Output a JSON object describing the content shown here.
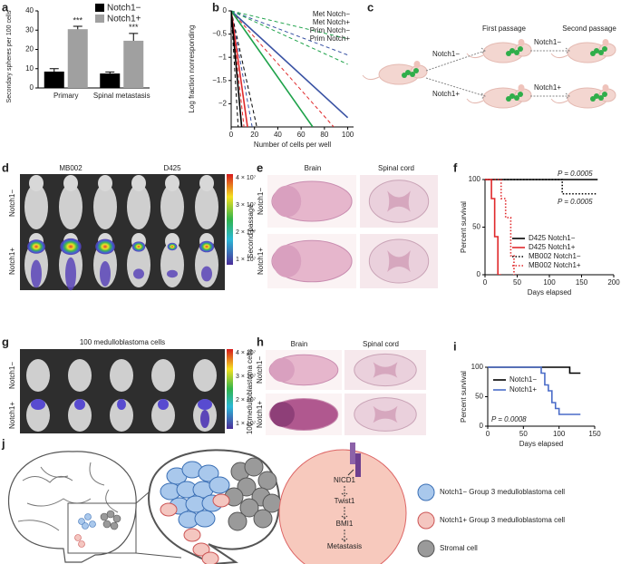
{
  "chart_data": [
    {
      "type": "bar",
      "label": "a",
      "y_label": "Secondary spheres per 100 cells",
      "categories": [
        "Primary",
        "Spinal metastasis"
      ],
      "series": [
        {
          "name": "Notch1−",
          "color": "#000000",
          "values": [
            8.5,
            7.5
          ],
          "errors": [
            1.5,
            0.8
          ]
        },
        {
          "name": "Notch1+",
          "color": "#a0a0a0",
          "values": [
            30.5,
            24.5
          ],
          "errors": [
            1.5,
            3.8
          ]
        }
      ],
      "annotations": [
        "***",
        "***"
      ],
      "ylim": [
        0,
        40
      ],
      "yticks": [
        0,
        10,
        20,
        30,
        40
      ],
      "legend": "upper right"
    },
    {
      "type": "line",
      "label": "b",
      "x_label": "Number of cells per well",
      "y_label": "Log fraction nonresponding",
      "xlim": [
        0,
        105
      ],
      "xticks": [
        0,
        20,
        40,
        60,
        80,
        100
      ],
      "ylim": [
        -2.5,
        0
      ],
      "yticks": [
        0,
        {
          "value": -0.5,
          "label": "−0.5"
        },
        {
          "value": -1,
          "label": "−1"
        },
        {
          "value": -1.5,
          "label": "−1.5"
        },
        {
          "value": -2,
          "label": "−2"
        }
      ],
      "series": [
        {
          "name": "Met Notch−",
          "color": "#3a53a4",
          "dash": "solid",
          "x": [
            0,
            100
          ],
          "values": [
            0,
            -2.3
          ]
        },
        {
          "name": "Met Notch+",
          "color": "#e0292b",
          "dash": "solid",
          "x": [
            0,
            14
          ],
          "values": [
            0,
            -2.5
          ]
        },
        {
          "name": "Prim Notch−",
          "color": "#1ea24a",
          "dash": "solid",
          "x": [
            0,
            70
          ],
          "values": [
            0,
            -2.5
          ]
        },
        {
          "name": "Prim Notch+",
          "color": "#000000",
          "dash": "solid",
          "x": [
            0,
            9
          ],
          "values": [
            0,
            -2.5
          ]
        }
      ],
      "bounds": [
        {
          "color": "#3a53a4",
          "dash": "dashed",
          "x": [
            0,
            100
          ],
          "values": [
            0,
            -0.95
          ]
        },
        {
          "color": "#3a53a4",
          "dash": "dashed",
          "x": [
            0,
            18
          ],
          "values": [
            0,
            -2.5
          ]
        },
        {
          "color": "#e0292b",
          "dash": "dashed",
          "x": [
            0,
            88
          ],
          "values": [
            0,
            -2.5
          ]
        },
        {
          "color": "#e0292b",
          "dash": "dashed",
          "x": [
            0,
            11
          ],
          "values": [
            0,
            -2.5
          ]
        },
        {
          "color": "#1ea24a",
          "dash": "dashed",
          "x": [
            0,
            100
          ],
          "values": [
            0,
            -0.6
          ]
        },
        {
          "color": "#1ea24a",
          "dash": "dashed",
          "x": [
            0,
            100
          ],
          "values": [
            0,
            -1.15
          ]
        },
        {
          "color": "#000000",
          "dash": "dashed",
          "x": [
            0,
            22
          ],
          "values": [
            0,
            -2.5
          ]
        },
        {
          "color": "#000000",
          "dash": "dashed",
          "x": [
            0,
            6
          ],
          "values": [
            0,
            -2.5
          ]
        }
      ],
      "legend": "upper right"
    },
    {
      "type": "line",
      "label": "f",
      "x_label": "Days elapsed",
      "y_label": "Percent survival",
      "xlim": [
        0,
        200
      ],
      "xticks": [
        0,
        50,
        100,
        150,
        200
      ],
      "ylim": [
        0,
        100
      ],
      "yticks": [
        0,
        50,
        100
      ],
      "series": [
        {
          "name": "D425 Notch1−",
          "color": "#000000",
          "dash": "solid",
          "x": [
            0,
            175
          ],
          "values": [
            100,
            100
          ]
        },
        {
          "name": "D425 Notch1+",
          "color": "#e0292b",
          "dash": "solid",
          "x": [
            0,
            10,
            10,
            15,
            15,
            20,
            20,
            25
          ],
          "values": [
            100,
            100,
            80,
            80,
            40,
            40,
            0,
            0
          ]
        },
        {
          "name": "MB002 Notch1−",
          "color": "#000000",
          "dash": "dotted",
          "x": [
            0,
            120,
            120,
            175
          ],
          "values": [
            100,
            100,
            85,
            85
          ]
        },
        {
          "name": "MB002 Notch1+",
          "color": "#e0292b",
          "dash": "dotted",
          "x": [
            0,
            25,
            25,
            32,
            32,
            40,
            40,
            45,
            45,
            50
          ],
          "values": [
            100,
            100,
            80,
            80,
            60,
            60,
            20,
            20,
            0,
            0
          ]
        }
      ],
      "annotations": [
        "P = 0.0005",
        "P = 0.0005"
      ],
      "legend": "lower right"
    },
    {
      "type": "line",
      "label": "i",
      "x_label": "Days elapsed",
      "y_label": "Percent survival",
      "xlim": [
        0,
        150
      ],
      "xticks": [
        0,
        50,
        100,
        150
      ],
      "ylim": [
        0,
        100
      ],
      "yticks": [
        0,
        50,
        100
      ],
      "series": [
        {
          "name": "Notch1−",
          "color": "#000000",
          "dash": "solid",
          "x": [
            0,
            115,
            115,
            130
          ],
          "values": [
            100,
            100,
            90,
            90
          ]
        },
        {
          "name": "Notch1+",
          "color": "#4a6cc8",
          "dash": "solid",
          "x": [
            0,
            75,
            75,
            80,
            80,
            85,
            85,
            90,
            90,
            95,
            95,
            100,
            100,
            130
          ],
          "values": [
            100,
            100,
            90,
            90,
            70,
            70,
            60,
            60,
            40,
            40,
            30,
            30,
            20,
            20
          ]
        }
      ],
      "annotations": [
        "P = 0.0008"
      ],
      "legend": "upper left"
    }
  ],
  "panels": {
    "c": {
      "label": "c",
      "first": "First passage",
      "second": "Second passage",
      "arrows": [
        "Notch1−",
        "Notch1+",
        "Notch1−",
        "Notch1+"
      ]
    },
    "d": {
      "label": "d",
      "columns": [
        "MB002",
        "D425"
      ],
      "rows": [
        "Notch1−",
        "Notch1+"
      ],
      "colorbar": [
        "4 × 10⁷",
        "3 × 10⁷",
        "2 × 10⁷",
        "1 × 10⁷"
      ]
    },
    "e": {
      "label": "e",
      "columns": [
        "Brain",
        "Spinal cord"
      ],
      "side": "Second passage",
      "rows": [
        "Notch1−",
        "Notch1+"
      ]
    },
    "g": {
      "label": "g",
      "title": "100 medulloblastoma cells",
      "rows": [
        "Notch1−",
        "Notch1+"
      ],
      "colorbar": [
        "4 × 10⁷",
        "3 × 10⁷",
        "2 × 10⁷",
        "1 × 10⁷"
      ]
    },
    "h": {
      "label": "h",
      "columns": [
        "Brain",
        "Spinal cord"
      ],
      "side": "100 medulloblastoma cells",
      "rows": [
        "Notch1−",
        "Notch1+"
      ]
    },
    "j": {
      "label": "j",
      "pathway": [
        "NICD1",
        "Twist1",
        "BMI1",
        "Metastasis"
      ],
      "legend": [
        "Notch1− Group 3 medulloblastoma cell",
        "Notch1+ Group 3 medulloblastoma cell",
        "Stromal cell"
      ]
    }
  }
}
